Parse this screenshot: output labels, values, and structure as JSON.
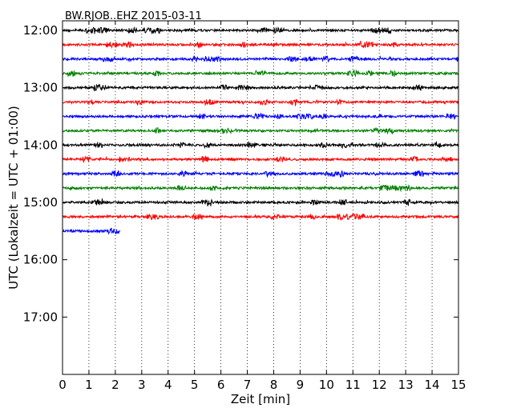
{
  "chart_data": {
    "type": "line",
    "title": "BW.RJOB..EHZ 2015-03-11",
    "xlabel": "Zeit  [min]",
    "ylabel": "UTC (Lokalzeit = UTC + 01:00)",
    "xlim": [
      0,
      15
    ],
    "x_ticks": [
      "0",
      "1",
      "2",
      "3",
      "4",
      "5",
      "6",
      "7",
      "8",
      "9",
      "10",
      "11",
      "12",
      "13",
      "14",
      "15"
    ],
    "y_ticks": [
      "12:00",
      "13:00",
      "14:00",
      "15:00",
      "16:00",
      "17:00"
    ],
    "y_range_utc": [
      "11:50",
      "18:00"
    ],
    "grid": "vertical dotted lines at each minute",
    "trace_colors": [
      "#000000",
      "#ff0000",
      "#0000ff",
      "#008000"
    ],
    "traces": [
      {
        "start": "12:00",
        "end_min": 15,
        "color": "#000000"
      },
      {
        "start": "12:15",
        "end_min": 15,
        "color": "#ff0000"
      },
      {
        "start": "12:30",
        "end_min": 15,
        "color": "#0000ff"
      },
      {
        "start": "12:45",
        "end_min": 15,
        "color": "#008000"
      },
      {
        "start": "13:00",
        "end_min": 15,
        "color": "#000000"
      },
      {
        "start": "13:15",
        "end_min": 15,
        "color": "#ff0000"
      },
      {
        "start": "13:30",
        "end_min": 15,
        "color": "#0000ff"
      },
      {
        "start": "13:45",
        "end_min": 15,
        "color": "#008000"
      },
      {
        "start": "14:00",
        "end_min": 15,
        "color": "#000000"
      },
      {
        "start": "14:15",
        "end_min": 15,
        "color": "#ff0000"
      },
      {
        "start": "14:30",
        "end_min": 15,
        "color": "#0000ff"
      },
      {
        "start": "14:45",
        "end_min": 15,
        "color": "#008000"
      },
      {
        "start": "15:00",
        "end_min": 15,
        "color": "#000000"
      },
      {
        "start": "15:15",
        "end_min": 15,
        "color": "#ff0000"
      },
      {
        "start": "15:30",
        "end_min": 2.2,
        "color": "#0000ff"
      }
    ]
  }
}
